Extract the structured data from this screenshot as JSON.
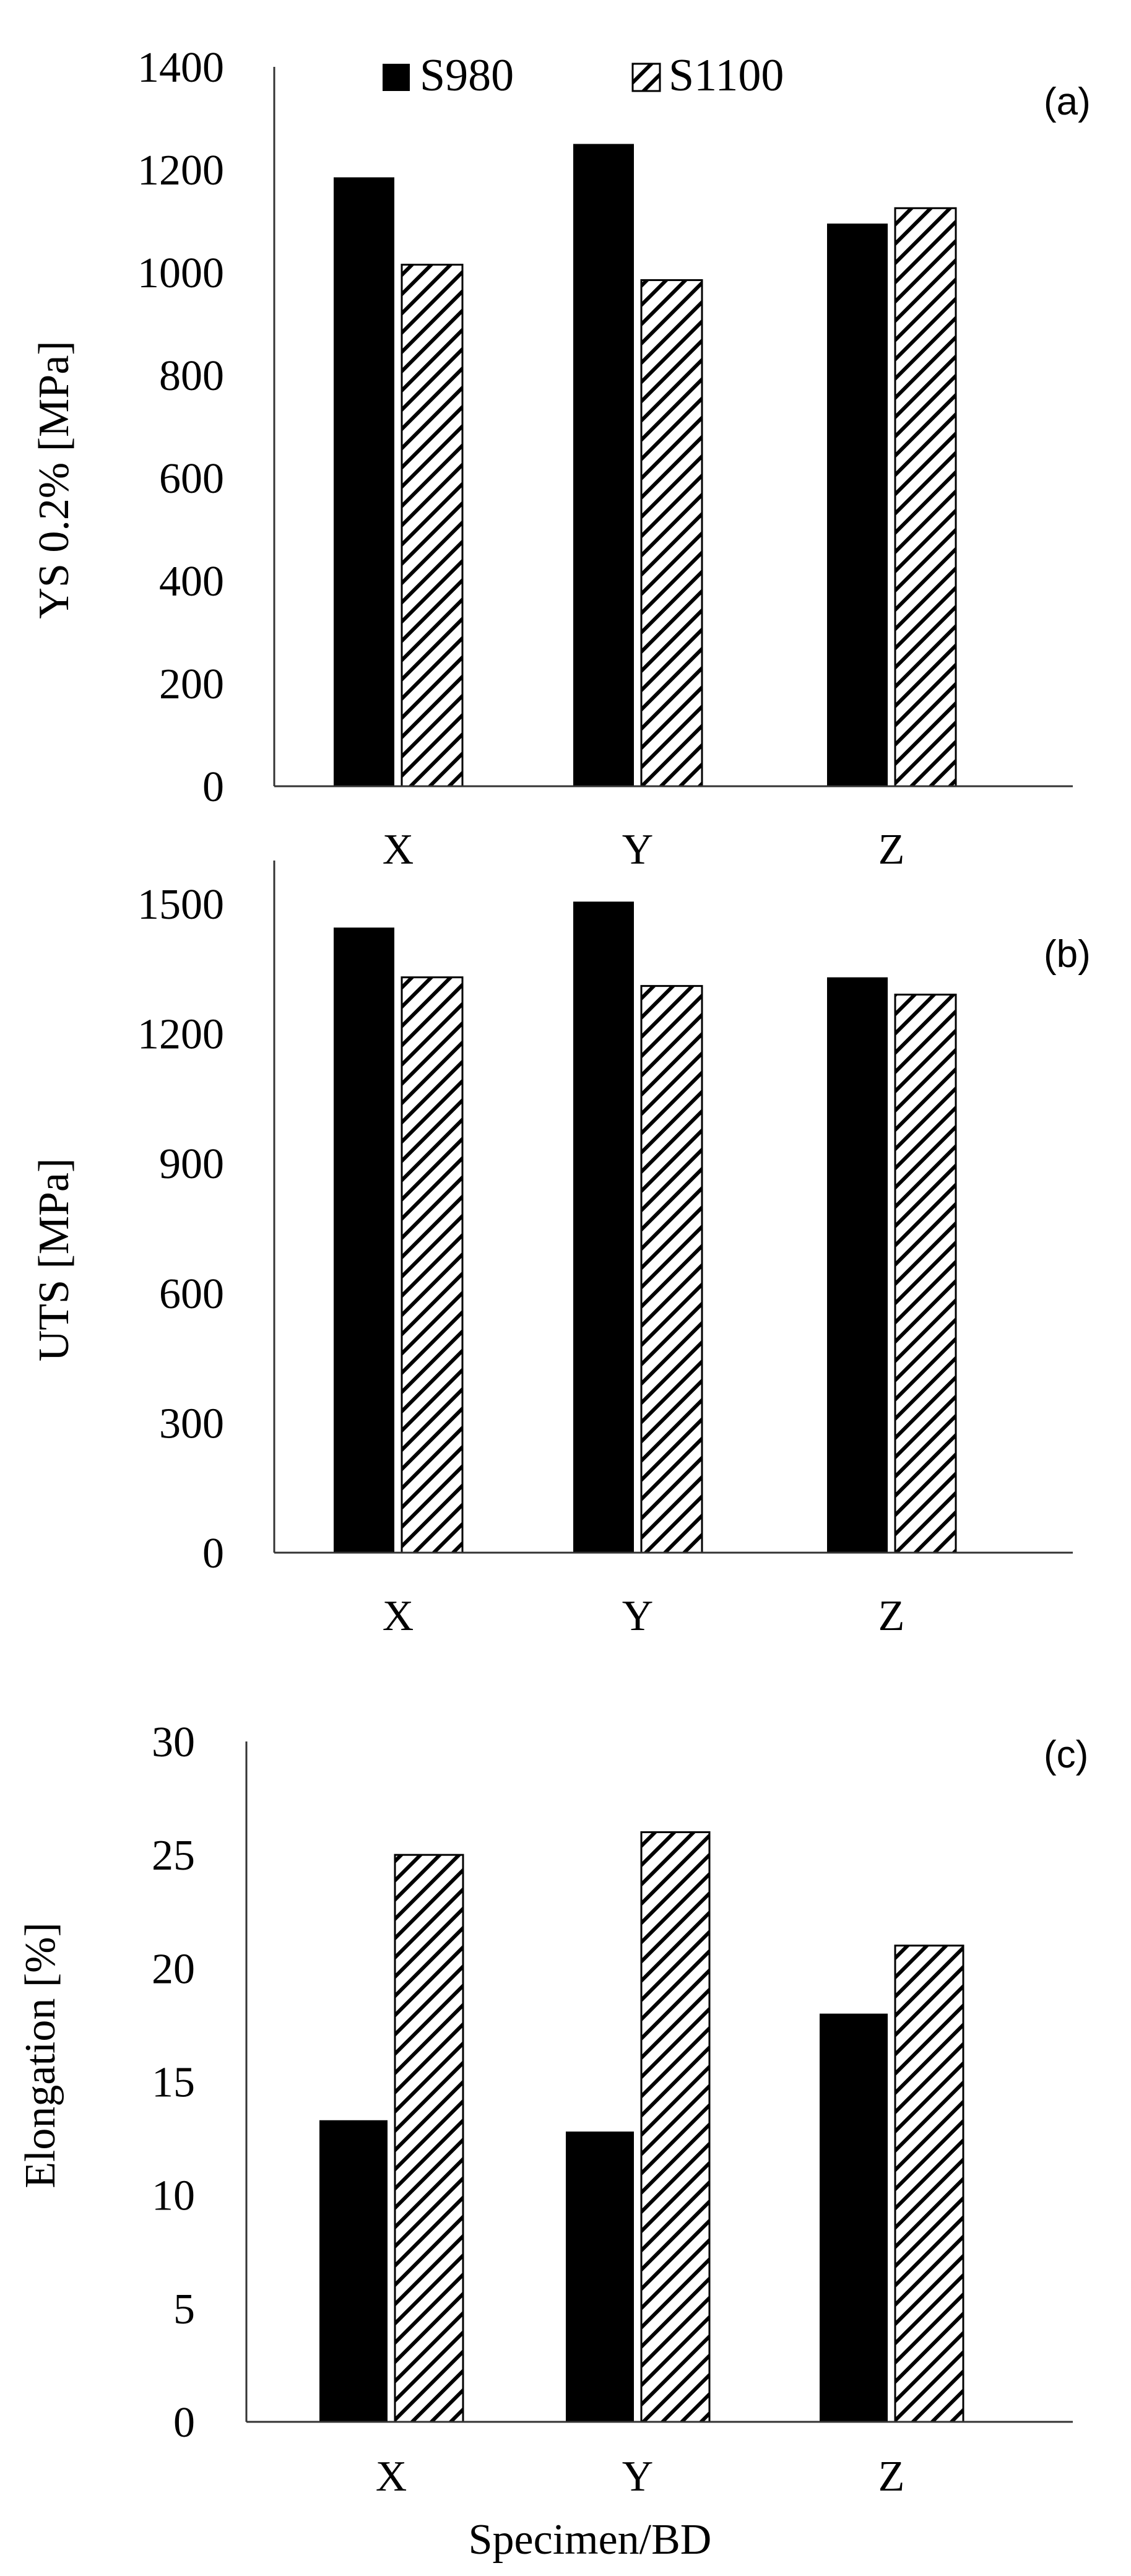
{
  "figure": {
    "legend": {
      "entries": [
        {
          "label": "S980",
          "style": "solid"
        },
        {
          "label": "S1100",
          "style": "hatched"
        }
      ],
      "placement": "top-center"
    },
    "shared_xlabel": "Specimen/BD"
  },
  "colors": {
    "bar_fill": "#000000",
    "hatch_stroke": "#000000",
    "axis": "#333333",
    "background": "#ffffff"
  },
  "chart_data": [
    {
      "type": "bar",
      "panel_label": "(a)",
      "categories": [
        "X",
        "Y",
        "Z"
      ],
      "ylabel": "YS 0.2% [MPa]",
      "xlabel": "",
      "ylim": [
        0,
        1400
      ],
      "yticks": [
        0,
        200,
        400,
        600,
        800,
        1000,
        1200,
        1400
      ],
      "grid": false,
      "series": [
        {
          "name": "S980",
          "values": [
            1185,
            1250,
            1095
          ]
        },
        {
          "name": "S1100",
          "values": [
            1015,
            985,
            1125
          ]
        }
      ]
    },
    {
      "type": "bar",
      "panel_label": "(b)",
      "categories": [
        "X",
        "Y",
        "Z"
      ],
      "ylabel": "UTS [MPa]",
      "xlabel": "",
      "ylim": [
        0,
        1600
      ],
      "yticks": [
        0,
        300,
        600,
        900,
        1200,
        1500
      ],
      "grid": false,
      "series": [
        {
          "name": "S980",
          "values": [
            1445,
            1505,
            1330
          ]
        },
        {
          "name": "S1100",
          "values": [
            1330,
            1310,
            1290
          ]
        }
      ]
    },
    {
      "type": "bar",
      "panel_label": "(c)",
      "categories": [
        "X",
        "Y",
        "Z"
      ],
      "ylabel": "Elongation [%]",
      "xlabel": "Specimen/BD",
      "ylim": [
        0,
        30
      ],
      "yticks": [
        0,
        5,
        10,
        15,
        20,
        25,
        30
      ],
      "grid": false,
      "series": [
        {
          "name": "S980",
          "values": [
            13.3,
            12.8,
            18.0
          ]
        },
        {
          "name": "S1100",
          "values": [
            25.0,
            26.0,
            21.0
          ]
        }
      ]
    }
  ]
}
